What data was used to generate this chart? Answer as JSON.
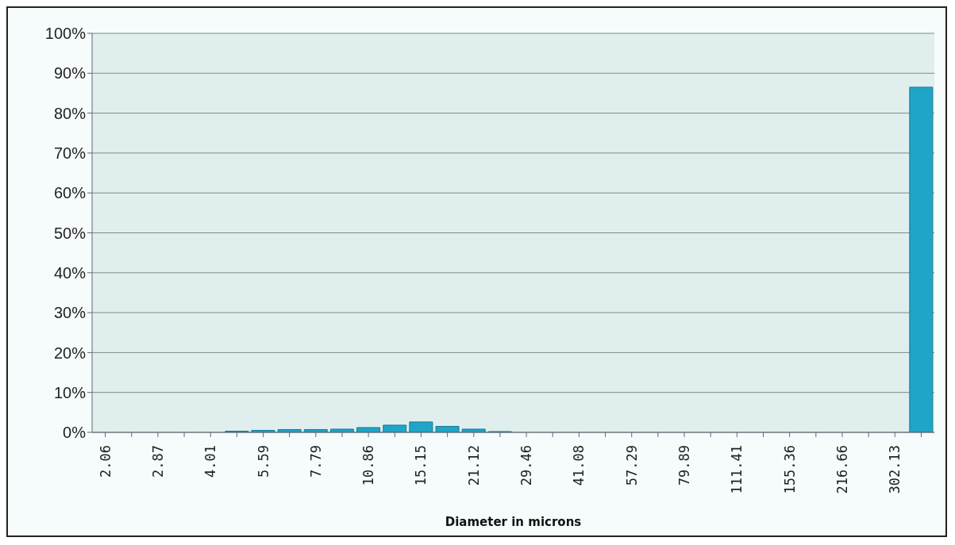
{
  "chart_data": {
    "type": "bar",
    "xlabel": "Diameter in microns",
    "categories": [
      "2.06",
      null,
      "2.87",
      null,
      "4.01",
      null,
      "5.59",
      null,
      "7.79",
      null,
      "10.86",
      null,
      "15.15",
      null,
      "21.12",
      null,
      "29.46",
      null,
      "41.08",
      null,
      "57.29",
      null,
      "79.89",
      null,
      "111.41",
      null,
      "155.36",
      null,
      "216.66",
      null,
      "302.13",
      null
    ],
    "values": [
      0,
      0,
      0,
      0,
      0,
      0.3,
      0.5,
      0.7,
      0.7,
      0.8,
      1.2,
      1.8,
      2.6,
      1.5,
      0.8,
      0.2,
      0,
      0,
      0,
      0,
      0,
      0,
      0,
      0,
      0,
      0,
      0,
      0,
      0,
      0,
      0,
      86.5
    ],
    "color": "#1ea5c8",
    "ylim": [
      0,
      100
    ],
    "yticks": [
      {
        "value": 0,
        "label": "0%"
      },
      {
        "value": 10,
        "label": "10%"
      },
      {
        "value": 20,
        "label": "20%"
      },
      {
        "value": 30,
        "label": "30%"
      },
      {
        "value": 40,
        "label": "40%"
      },
      {
        "value": 50,
        "label": "50%"
      },
      {
        "value": 60,
        "label": "60%"
      },
      {
        "value": 70,
        "label": "70%"
      },
      {
        "value": 80,
        "label": "80%"
      },
      {
        "value": 90,
        "label": "90%"
      },
      {
        "value": 100,
        "label": "100%"
      }
    ],
    "grid": "y",
    "legend": false
  }
}
